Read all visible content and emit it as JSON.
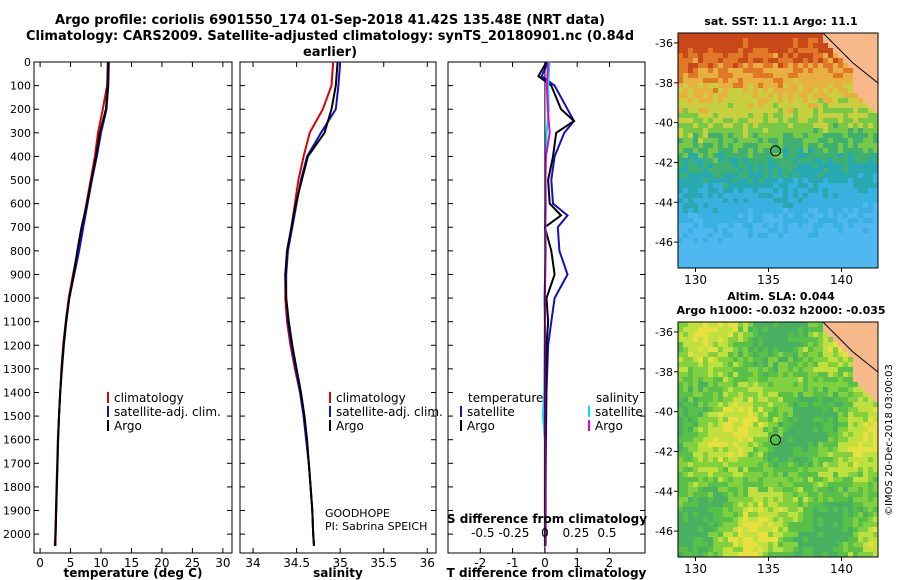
{
  "title_line1": "Argo profile: coriolis 6901550_174 01-Sep-2018 41.42S 135.48E (NRT data)",
  "title_line2": "Climatology: CARS2009. Satellite-adjusted climatology: synTS_20180901.nc (0.84d earlier)",
  "colors": {
    "climatology": "#e00000",
    "satellite": "#1010c8",
    "argo": "#000000",
    "sat_s": "#00e0e8",
    "argo_s": "#e000e0"
  },
  "chart_data": [
    {
      "type": "line",
      "id": "temperature",
      "xlabel": "temperature (deg C)",
      "ylabel": "",
      "xlim": [
        -1,
        31.5
      ],
      "ylim": [
        2080,
        0
      ],
      "xticks": [
        "0",
        "5",
        "10",
        "15",
        "20",
        "25",
        "30"
      ],
      "yticks": [
        "0",
        "100",
        "200",
        "300",
        "400",
        "500",
        "600",
        "700",
        "800",
        "900",
        "1000",
        "1100",
        "1200",
        "1300",
        "1400",
        "1500",
        "1600",
        "1700",
        "1800",
        "1900",
        "2000"
      ],
      "legend": [
        "climatology",
        "satellite-adj. clim.",
        "Argo"
      ],
      "series": [
        {
          "name": "climatology",
          "depth": [
            0,
            100,
            200,
            300,
            400,
            500,
            600,
            700,
            800,
            900,
            1000,
            1100,
            1200,
            1300,
            1400,
            1500,
            1600,
            1700,
            1800,
            1900,
            2000,
            2050
          ],
          "values": [
            11.1,
            11.0,
            10.3,
            9.5,
            9.0,
            8.3,
            7.6,
            6.9,
            6.2,
            5.4,
            4.7,
            4.2,
            3.8,
            3.5,
            3.3,
            3.1,
            2.9,
            2.8,
            2.7,
            2.6,
            2.5,
            2.4
          ]
        },
        {
          "name": "satellite-adj. clim.",
          "depth": [
            0,
            100,
            200,
            300,
            400,
            500,
            600,
            700,
            800,
            900,
            1000,
            1100,
            1200,
            1300,
            1400,
            1500,
            1600,
            1700,
            1800,
            1900,
            2000,
            2050
          ],
          "values": [
            11.3,
            11.2,
            10.9,
            10.0,
            9.3,
            8.5,
            7.8,
            7.1,
            6.4,
            5.6,
            4.8,
            4.3,
            3.9,
            3.6,
            3.3,
            3.1,
            2.95,
            2.85,
            2.75,
            2.65,
            2.55,
            2.5
          ]
        },
        {
          "name": "Argo",
          "depth": [
            0,
            100,
            200,
            300,
            400,
            500,
            600,
            700,
            800,
            900,
            1000,
            1100,
            1200,
            1300,
            1400,
            1500,
            1600,
            1700,
            1800,
            1900,
            2000,
            2050
          ],
          "values": [
            11.2,
            11.1,
            10.8,
            9.8,
            9.2,
            8.4,
            7.7,
            6.8,
            6.1,
            5.5,
            4.8,
            4.25,
            3.85,
            3.55,
            3.3,
            3.1,
            2.95,
            2.85,
            2.75,
            2.65,
            2.55,
            2.5
          ]
        }
      ]
    },
    {
      "type": "line",
      "id": "salinity",
      "xlabel": "salinity",
      "xlim": [
        33.85,
        36.1
      ],
      "xticks": [
        "34",
        "34.5",
        "35",
        "35.5",
        "36"
      ],
      "legend": [
        "climatology",
        "satellite-adj. clim.",
        "Argo"
      ],
      "annotation": [
        "GOODHOPE",
        "PI: Sabrina SPEICH"
      ],
      "series": [
        {
          "name": "climatology",
          "depth": [
            0,
            50,
            100,
            200,
            300,
            400,
            500,
            600,
            700,
            800,
            900,
            1000,
            1100,
            1200,
            1300,
            1400,
            1500,
            1600,
            1700,
            1800,
            1900,
            2000,
            2050
          ],
          "values": [
            34.92,
            34.91,
            34.9,
            34.8,
            34.65,
            34.58,
            34.52,
            34.48,
            34.44,
            34.4,
            34.37,
            34.37,
            34.39,
            34.43,
            34.48,
            34.54,
            34.58,
            34.61,
            34.64,
            34.66,
            34.68,
            34.69,
            34.7
          ]
        },
        {
          "name": "satellite-adj. clim.",
          "depth": [
            0,
            50,
            100,
            200,
            300,
            400,
            500,
            600,
            700,
            800,
            900,
            1000,
            1100,
            1200,
            1300,
            1400,
            1500,
            1600,
            1700,
            1800,
            1900,
            2000,
            2050
          ],
          "values": [
            35.0,
            34.99,
            34.98,
            34.95,
            34.78,
            34.62,
            34.55,
            34.5,
            34.45,
            34.4,
            34.38,
            34.38,
            34.4,
            34.44,
            34.49,
            34.54,
            34.58,
            34.61,
            34.64,
            34.66,
            34.68,
            34.69,
            34.7
          ]
        },
        {
          "name": "Argo",
          "depth": [
            0,
            50,
            100,
            200,
            300,
            400,
            500,
            600,
            700,
            800,
            900,
            1000,
            1100,
            1200,
            1300,
            1400,
            1500,
            1600,
            1700,
            1800,
            1900,
            2000,
            2050
          ],
          "values": [
            34.97,
            34.96,
            34.95,
            34.9,
            34.82,
            34.63,
            34.56,
            34.49,
            34.44,
            34.39,
            34.37,
            34.38,
            34.41,
            34.45,
            34.5,
            34.55,
            34.59,
            34.62,
            34.64,
            34.66,
            34.68,
            34.69,
            34.7
          ]
        }
      ]
    },
    {
      "type": "line",
      "id": "differences",
      "xlabel": "T difference from climatology",
      "xlabel_top": "S difference from climatology",
      "xlim": [
        -3,
        3.1
      ],
      "xticks": [
        "-2",
        "-1",
        "0",
        "1",
        "2"
      ],
      "xticks_top": [
        "-0.5",
        "-0.25",
        "0",
        "0.25",
        "0.5"
      ],
      "legend_t": [
        "temperature",
        "satellite",
        "Argo"
      ],
      "legend_s": [
        "salinity",
        "satellite",
        "Argo"
      ],
      "series": [
        {
          "name": "T satellite",
          "depth": [
            0,
            60,
            100,
            200,
            250,
            300,
            400,
            500,
            600,
            650,
            700,
            800,
            900,
            1000,
            1100,
            1200,
            1400,
            1600,
            1800,
            2000,
            2050
          ],
          "values": [
            0.1,
            -0.1,
            0.3,
            0.7,
            0.9,
            0.6,
            0.3,
            0.2,
            0.25,
            0.7,
            0.4,
            0.45,
            0.7,
            0.3,
            0.2,
            0.1,
            0.05,
            0.03,
            0.02,
            0.02,
            0.02
          ]
        },
        {
          "name": "T Argo",
          "depth": [
            0,
            60,
            100,
            200,
            250,
            300,
            400,
            500,
            600,
            650,
            700,
            800,
            900,
            1000,
            1100,
            1200,
            1400,
            1600,
            1800,
            2000,
            2050
          ],
          "values": [
            0.05,
            -0.2,
            0.2,
            0.5,
            0.9,
            0.35,
            0.25,
            0.1,
            0.15,
            0.5,
            0.0,
            0.2,
            0.3,
            0.05,
            0.1,
            0.05,
            0.03,
            0.02,
            0.02,
            0.02,
            0.02
          ]
        },
        {
          "name": "S satellite",
          "depth": [
            0,
            50,
            100,
            200,
            300,
            400,
            500,
            600,
            700,
            800,
            900,
            1000,
            1100,
            1200,
            1400,
            1500,
            1600,
            1800,
            2000,
            2050
          ],
          "values": [
            0.15,
            0.12,
            0.1,
            0.12,
            0.05,
            0.02,
            0.02,
            0.03,
            0.02,
            0.03,
            0.01,
            -0.02,
            0.0,
            -0.01,
            -0.02,
            -0.06,
            0.0,
            0.0,
            0.0,
            0.0
          ]
        },
        {
          "name": "S Argo",
          "depth": [
            0,
            50,
            100,
            200,
            300,
            400,
            500,
            600,
            700,
            800,
            900,
            1000,
            1100,
            1200,
            1400,
            1500,
            1600,
            1800,
            2000,
            2050
          ],
          "values": [
            0.1,
            0.08,
            0.06,
            0.09,
            0.15,
            0.03,
            0.02,
            0.02,
            0.01,
            0.02,
            0.01,
            0.0,
            0.0,
            0.0,
            0.0,
            0.0,
            0.0,
            0.0,
            0.0,
            0.0
          ]
        }
      ]
    },
    {
      "type": "heatmap",
      "id": "sst_map",
      "title": "sat. SST: 11.1  Argo: 11.1",
      "xticks": [
        "130",
        "135",
        "140"
      ],
      "yticks": [
        "-36",
        "-38",
        "-40",
        "-42",
        "-44",
        "-46"
      ],
      "marker": {
        "lon": 135.48,
        "lat": -41.42
      }
    },
    {
      "type": "heatmap",
      "id": "sla_map",
      "title_line1": "Altim. SLA: 0.044",
      "title_line2": "Argo h1000: -0.032 h2000: -0.035",
      "xticks": [
        "130",
        "135",
        "140"
      ],
      "yticks": [
        "-36",
        "-38",
        "-40",
        "-42",
        "-44",
        "-46"
      ],
      "marker": {
        "lon": 135.48,
        "lat": -41.42
      }
    }
  ],
  "credit": "©IMOS 20-Dec-2018 03:00:03"
}
